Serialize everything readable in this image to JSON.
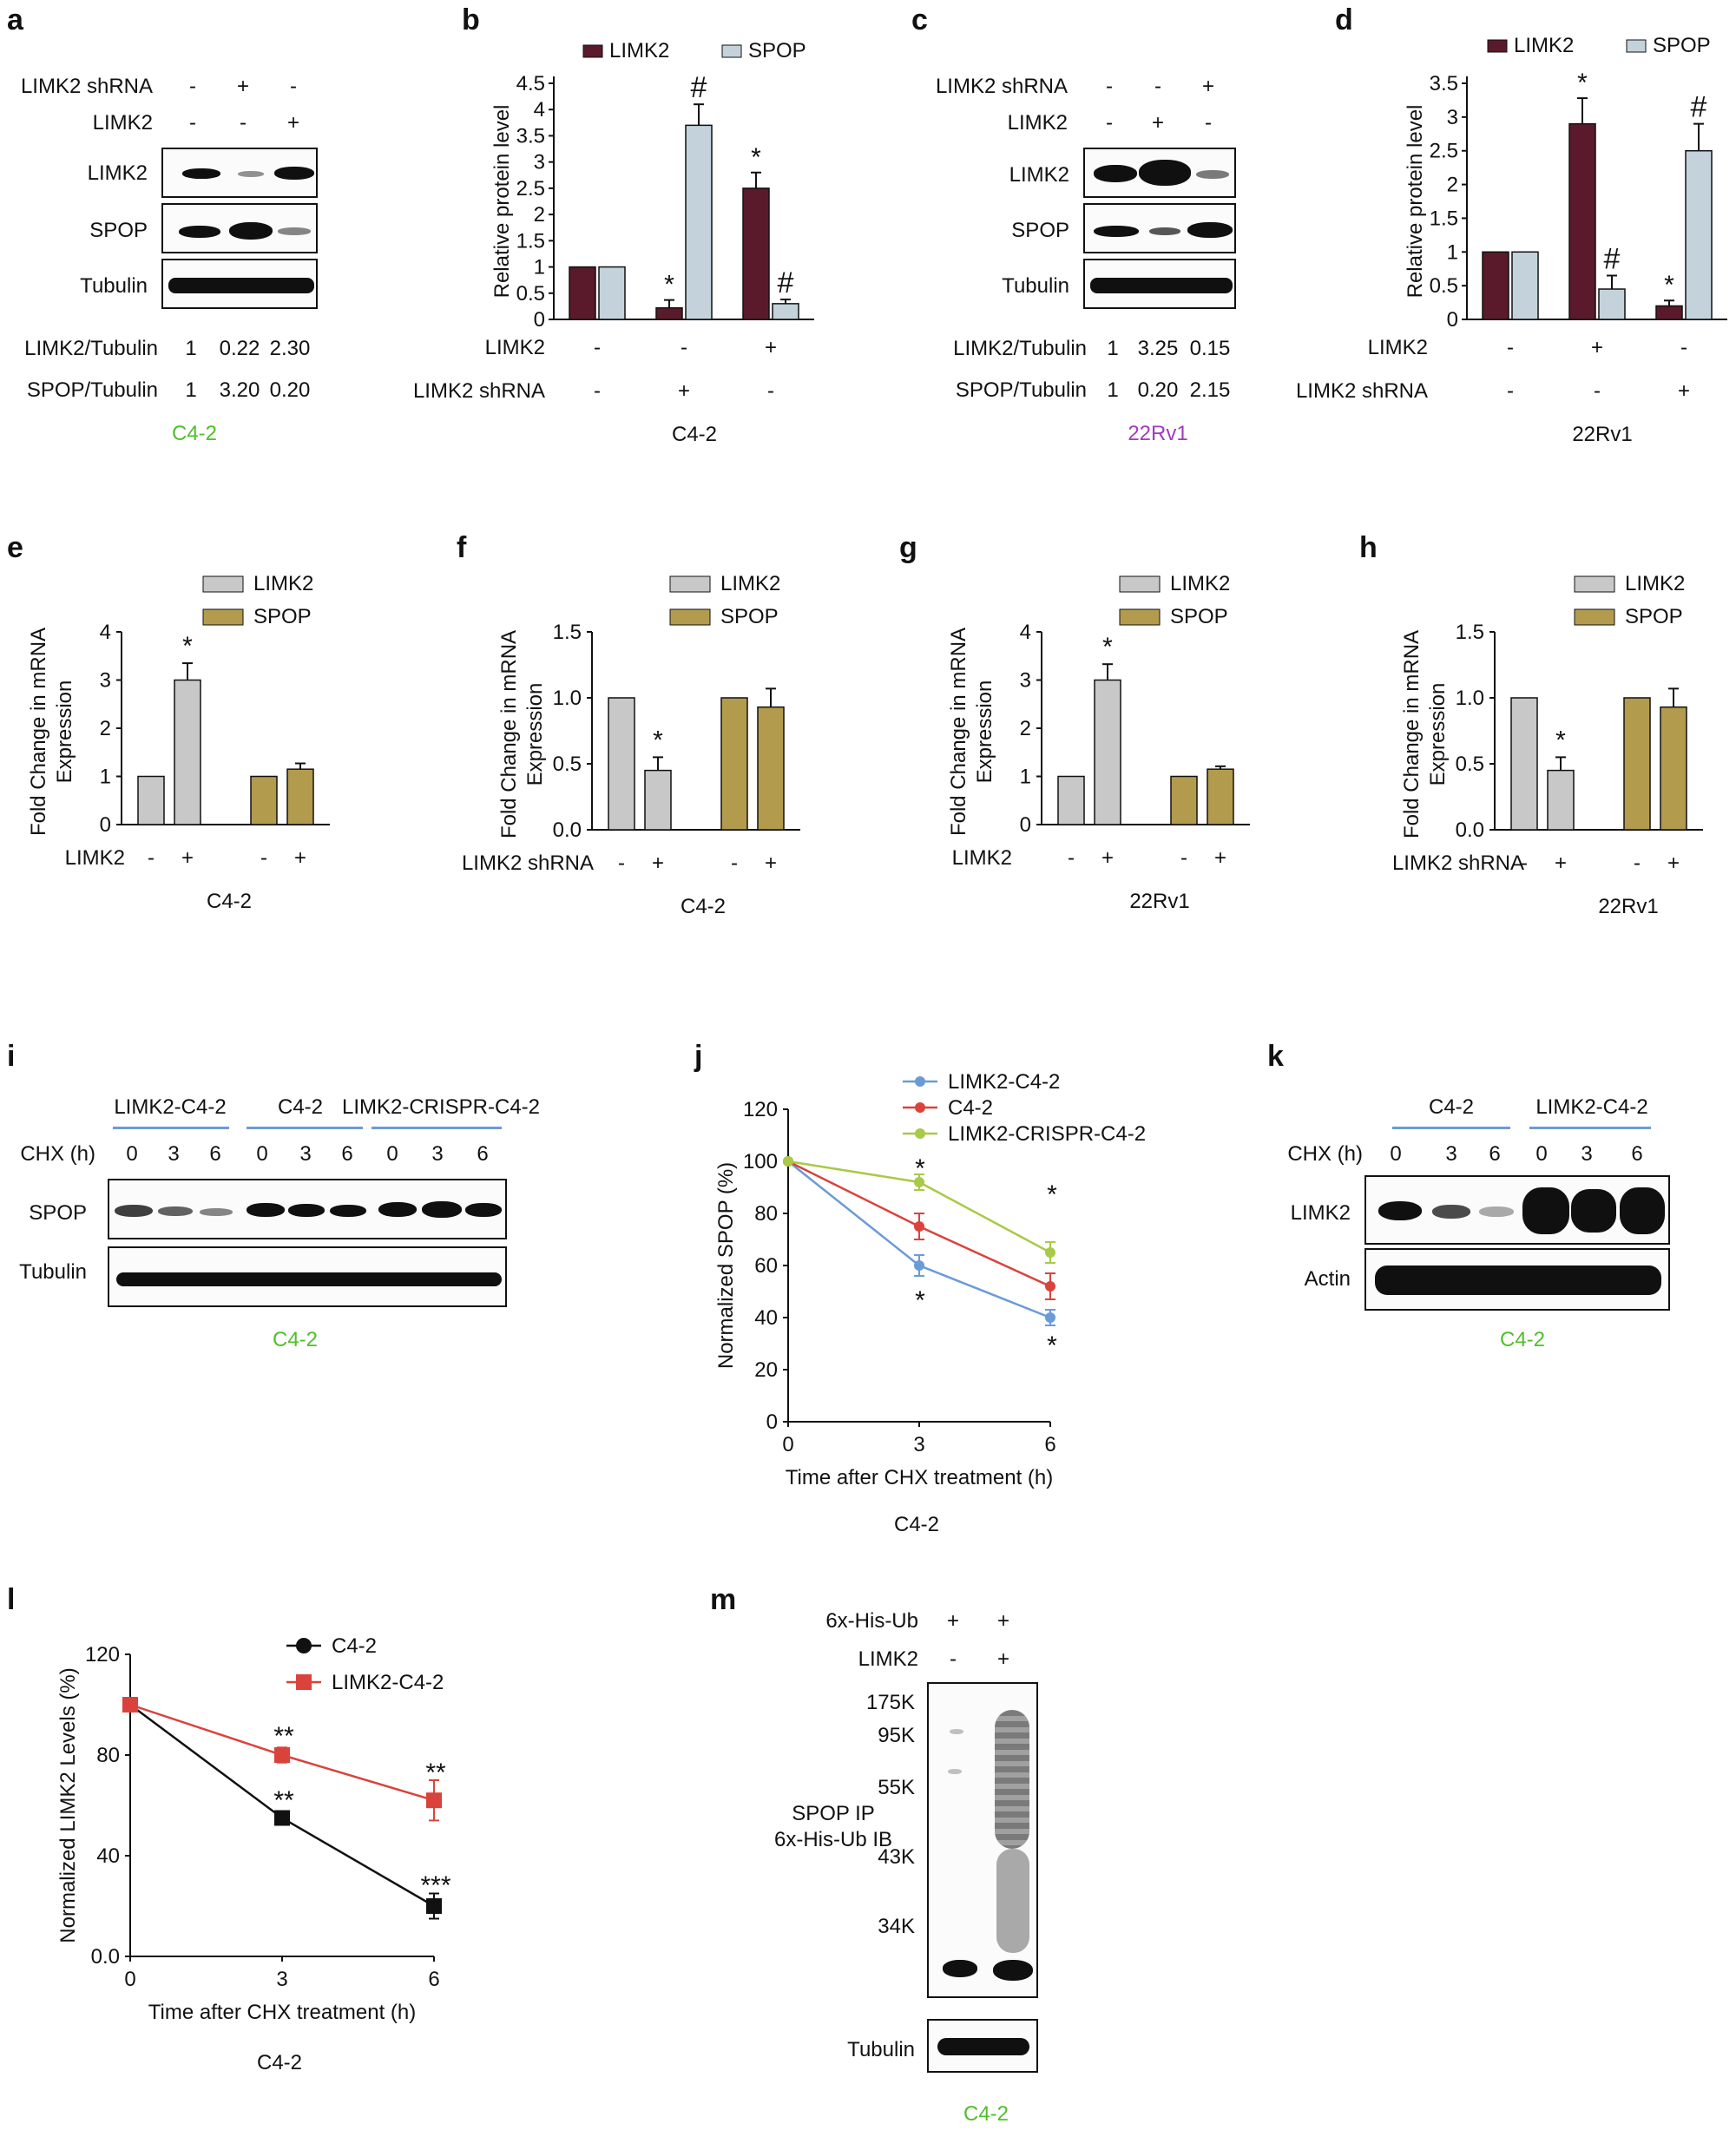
{
  "panel_labels": [
    "a",
    "b",
    "c",
    "d",
    "e",
    "f",
    "g",
    "h",
    "i",
    "j",
    "k",
    "l",
    "m"
  ],
  "colors": {
    "limk2_dark": "#5a1a2b",
    "spop_light": "#c4d3db",
    "limk2_gray": "#c8c8c8",
    "spop_gold": "#b39b4e",
    "blue": "#6b9bd6",
    "red": "#d9433b",
    "green": "#a9c948",
    "c42_text": "#4fbf2a",
    "rv1_text": "#a23bc0"
  },
  "common": {
    "minus": "-",
    "plus": "+",
    "limk2": "LIMK2",
    "spop": "SPOP",
    "tubulin": "Tubulin",
    "actin": "Actin",
    "limk2_shrna": "LIMK2 shRNA",
    "c42": "C4-2",
    "rv1": "22Rv1",
    "limk2_tubulin": "LIMK2/Tubulin",
    "spop_tubulin": "SPOP/Tubulin",
    "ylabel_rel": "Relative protein level",
    "ylabel_fold": "Fold Change in mRNA Expression",
    "star": "*",
    "hash": "#"
  },
  "panel_a": {
    "limk2_shrna_marks": [
      "-",
      "+",
      "-"
    ],
    "limk2_marks": [
      "-",
      "-",
      "+"
    ],
    "limk2_tubulin": [
      "1",
      "0.22",
      "2.30"
    ],
    "spop_tubulin": [
      "1",
      "3.20",
      "0.20"
    ]
  },
  "panel_c": {
    "limk2_shrna_marks": [
      "-",
      "-",
      "+"
    ],
    "limk2_marks": [
      "-",
      "+",
      "-"
    ],
    "limk2_tubulin": [
      "1",
      "3.25",
      "0.15"
    ],
    "spop_tubulin": [
      "1",
      "0.20",
      "2.15"
    ]
  },
  "panel_i": {
    "groups": [
      "LIMK2-C4-2",
      "C4-2",
      "LIMK2-CRISPR-C4-2"
    ],
    "chx_label": "CHX (h)",
    "chx_times": [
      "0",
      "3",
      "6",
      "0",
      "3",
      "6",
      "0",
      "3",
      "6"
    ]
  },
  "panel_k": {
    "groups": [
      "C4-2",
      "LIMK2-C4-2"
    ],
    "chx_label": "CHX (h)",
    "chx_times": [
      "0",
      "3",
      "6",
      "0",
      "3",
      "6"
    ]
  },
  "panel_m": {
    "his_ub_label": "6x-His-Ub",
    "his_marks": [
      "+",
      "+"
    ],
    "limk2_marks": [
      "-",
      "+"
    ],
    "ip_label_1": "SPOP IP",
    "ip_label_2": "6x-His-Ub IB",
    "markers": [
      "175K",
      "95K",
      "55K",
      "43K",
      "34K"
    ]
  },
  "chart_data": [
    {
      "panel": "b",
      "type": "bar",
      "ylabel": "Relative protein level",
      "ylim": [
        0,
        4.5
      ],
      "yticks": [
        "0",
        "0.5",
        "1",
        "1.5",
        "2",
        "2.5",
        "3",
        "3.5",
        "4",
        "4.5"
      ],
      "conditions": [
        {
          "LIMK2": "-",
          "LIMK2 shRNA": "-"
        },
        {
          "LIMK2": "-",
          "LIMK2 shRNA": "+"
        },
        {
          "LIMK2": "+",
          "LIMK2 shRNA": "-"
        }
      ],
      "series": [
        {
          "name": "LIMK2",
          "values": [
            1.0,
            0.22,
            2.5
          ],
          "errors": [
            0,
            0.15,
            0.3
          ],
          "marks": [
            "",
            "*",
            "*"
          ]
        },
        {
          "name": "SPOP",
          "values": [
            1.0,
            3.7,
            0.3
          ],
          "errors": [
            0,
            0.4,
            0.08
          ],
          "marks": [
            "",
            "#",
            "#"
          ]
        }
      ],
      "cell": "C4-2"
    },
    {
      "panel": "d",
      "type": "bar",
      "ylabel": "Relative protein level",
      "ylim": [
        0,
        3.5
      ],
      "yticks": [
        "0",
        "0.5",
        "1",
        "1.5",
        "2",
        "2.5",
        "3",
        "3.5"
      ],
      "conditions": [
        {
          "LIMK2": "-",
          "LIMK2 shRNA": "-"
        },
        {
          "LIMK2": "+",
          "LIMK2 shRNA": "-"
        },
        {
          "LIMK2": "-",
          "LIMK2 shRNA": "+"
        }
      ],
      "series": [
        {
          "name": "LIMK2",
          "values": [
            1.0,
            2.9,
            0.2
          ],
          "errors": [
            0,
            0.38,
            0.08
          ],
          "marks": [
            "",
            "*",
            "*"
          ]
        },
        {
          "name": "SPOP",
          "values": [
            1.0,
            0.45,
            2.5
          ],
          "errors": [
            0,
            0.2,
            0.4
          ],
          "marks": [
            "",
            "#",
            "#"
          ]
        }
      ],
      "cell": "22Rv1"
    },
    {
      "panel": "e",
      "type": "bar",
      "ylabel": "Fold Change in mRNA Expression",
      "ylim": [
        0,
        4
      ],
      "yticks": [
        "0",
        "1",
        "2",
        "3",
        "4"
      ],
      "treatment": "LIMK2",
      "marks": [
        "-",
        "+",
        "-",
        "+"
      ],
      "series": [
        {
          "name": "LIMK2",
          "values": [
            1.0,
            3.0
          ],
          "errors": [
            0,
            0.35
          ],
          "sig": [
            "",
            "*"
          ]
        },
        {
          "name": "SPOP",
          "values": [
            1.0,
            1.15
          ],
          "errors": [
            0,
            0.12
          ],
          "sig": [
            "",
            ""
          ]
        }
      ],
      "cell": "C4-2"
    },
    {
      "panel": "f",
      "type": "bar",
      "ylabel": "Fold Change in mRNA Expression",
      "ylim": [
        0,
        1.5
      ],
      "yticks": [
        "0.0",
        "0.5",
        "1.0",
        "1.5"
      ],
      "treatment": "LIMK2 shRNA",
      "marks": [
        "-",
        "+",
        "-",
        "+"
      ],
      "series": [
        {
          "name": "LIMK2",
          "values": [
            1.0,
            0.45
          ],
          "errors": [
            0,
            0.1
          ],
          "sig": [
            "",
            "*"
          ]
        },
        {
          "name": "SPOP",
          "values": [
            1.0,
            0.93
          ],
          "errors": [
            0,
            0.14
          ],
          "sig": [
            "",
            ""
          ]
        }
      ],
      "cell": "C4-2"
    },
    {
      "panel": "g",
      "type": "bar",
      "ylabel": "Fold Change in mRNA Expression",
      "ylim": [
        0,
        4
      ],
      "yticks": [
        "0",
        "1",
        "2",
        "3",
        "4"
      ],
      "treatment": "LIMK2",
      "marks": [
        "-",
        "+",
        "-",
        "+"
      ],
      "series": [
        {
          "name": "LIMK2",
          "values": [
            1.0,
            3.0
          ],
          "errors": [
            0,
            0.33
          ],
          "sig": [
            "",
            "*"
          ]
        },
        {
          "name": "SPOP",
          "values": [
            1.0,
            1.15
          ],
          "errors": [
            0,
            0.06
          ],
          "sig": [
            "",
            ""
          ]
        }
      ],
      "cell": "22Rv1"
    },
    {
      "panel": "h",
      "type": "bar",
      "ylabel": "Fold Change in mRNA Expression",
      "ylim": [
        0,
        1.5
      ],
      "yticks": [
        "0.0",
        "0.5",
        "1.0",
        "1.5"
      ],
      "treatment": "LIMK2 shRNA",
      "marks": [
        "-",
        "+",
        "-",
        "+"
      ],
      "series": [
        {
          "name": "LIMK2",
          "values": [
            1.0,
            0.45
          ],
          "errors": [
            0,
            0.1
          ],
          "sig": [
            "",
            "*"
          ]
        },
        {
          "name": "SPOP",
          "values": [
            1.0,
            0.93
          ],
          "errors": [
            0,
            0.14
          ],
          "sig": [
            "",
            ""
          ]
        }
      ],
      "cell": "22Rv1"
    },
    {
      "panel": "j",
      "type": "line",
      "ylabel": "Normalized SPOP (%)",
      "xlabel": "Time after CHX treatment (h)",
      "x": [
        0,
        3,
        6
      ],
      "xticks": [
        "0",
        "3",
        "6"
      ],
      "ylim": [
        0,
        120
      ],
      "yticks": [
        "0",
        "20",
        "40",
        "60",
        "80",
        "100",
        "120"
      ],
      "series": [
        {
          "name": "LIMK2-C4-2",
          "values": [
            100,
            60,
            40
          ],
          "errors": [
            0,
            4,
            3
          ]
        },
        {
          "name": "C4-2",
          "values": [
            100,
            75,
            52
          ],
          "errors": [
            0,
            5,
            5
          ]
        },
        {
          "name": "LIMK2-CRISPR-C4-2",
          "values": [
            100,
            92,
            65
          ],
          "errors": [
            0,
            3,
            4
          ]
        }
      ],
      "annotations": [
        "*",
        "*",
        "*",
        "*"
      ],
      "cell": "C4-2"
    },
    {
      "panel": "l",
      "type": "line",
      "ylabel": "Normalized  LIMK2 Levels (%)",
      "xlabel": "Time after CHX treatment (h)",
      "x": [
        0,
        3,
        6
      ],
      "xticks": [
        "0",
        "3",
        "6"
      ],
      "ylim": [
        0,
        120
      ],
      "yticks": [
        "0.0",
        "40",
        "80",
        "120"
      ],
      "series": [
        {
          "name": "C4-2",
          "values": [
            100,
            55,
            20
          ],
          "errors": [
            0,
            2,
            5
          ]
        },
        {
          "name": "LIMK2-C4-2",
          "values": [
            100,
            80,
            62
          ],
          "errors": [
            0,
            3,
            8
          ]
        }
      ],
      "annotations": [
        "**",
        "**",
        "**",
        "***"
      ],
      "cell": "C4-2"
    }
  ]
}
